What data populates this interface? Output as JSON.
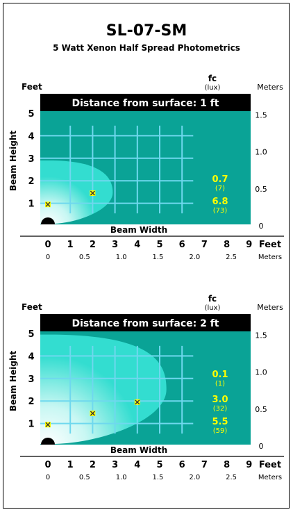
{
  "page": {
    "title": "SL-07-SM",
    "subtitle": "5 Watt Xenon Half Spread Photometrics"
  },
  "colors": {
    "panel": "#0aa396",
    "beam_outer": "#33ddd0",
    "beam_center": "#ffffff",
    "grid": "#6fd8ee",
    "labels": "#ffff00",
    "header": "#000000"
  },
  "chart_data": [
    {
      "type": "area",
      "title": "Distance from surface: 1 ft",
      "left_axis_title": "Feet",
      "right_axis_title": "Meters",
      "fc_title": "fc",
      "lux_title": "(lux)",
      "ylabel": "Beam Height",
      "xlabel": "Beam Width",
      "x_unit_feet": "Feet",
      "x_unit_meters": "Meters",
      "x_ticks_ft": [
        "0",
        "1",
        "2",
        "3",
        "4",
        "5",
        "6",
        "7",
        "8",
        "9"
      ],
      "x_ticks_m": [
        "0",
        "0.5",
        "1.0",
        "1.5",
        "2.0",
        "2.5"
      ],
      "y_ticks_ft": [
        "1",
        "2",
        "3",
        "4",
        "5"
      ],
      "y_ticks_m": [
        "0",
        "0.5",
        "1.0",
        "1.5"
      ],
      "xlim": [
        0,
        9
      ],
      "ylim": [
        0,
        5
      ],
      "beam_reach_ft": 2.9,
      "beam_top_ft": 2.9,
      "illuminance": [
        {
          "fc": "0.7",
          "lux": "(7)",
          "y_ft": 1.95
        },
        {
          "fc": "6.8",
          "lux": "(73)",
          "y_ft": 0.95
        }
      ],
      "markers": [
        {
          "x_ft": 0,
          "y_ft": 0.95
        },
        {
          "x_ft": 2,
          "y_ft": 1.45
        }
      ]
    },
    {
      "type": "area",
      "title": "Distance from surface: 2 ft",
      "left_axis_title": "Feet",
      "right_axis_title": "Meters",
      "fc_title": "fc",
      "lux_title": "(lux)",
      "ylabel": "Beam Height",
      "xlabel": "Beam Width",
      "x_unit_feet": "Feet",
      "x_unit_meters": "Meters",
      "x_ticks_ft": [
        "0",
        "1",
        "2",
        "3",
        "4",
        "5",
        "6",
        "7",
        "8",
        "9"
      ],
      "x_ticks_m": [
        "0",
        "0.5",
        "1.0",
        "1.5",
        "2.0",
        "2.5"
      ],
      "y_ticks_ft": [
        "1",
        "2",
        "3",
        "4",
        "5"
      ],
      "y_ticks_m": [
        "0",
        "0.5",
        "1.0",
        "1.5"
      ],
      "xlim": [
        0,
        9
      ],
      "ylim": [
        0,
        5
      ],
      "beam_reach_ft": 5.3,
      "beam_top_ft": 4.95,
      "illuminance": [
        {
          "fc": "0.1",
          "lux": "(1)",
          "y_ft": 3.05
        },
        {
          "fc": "3.0",
          "lux": "(32)",
          "y_ft": 1.95
        },
        {
          "fc": "5.5",
          "lux": "(59)",
          "y_ft": 0.95
        }
      ],
      "markers": [
        {
          "x_ft": 0,
          "y_ft": 0.95
        },
        {
          "x_ft": 2,
          "y_ft": 1.45
        },
        {
          "x_ft": 4,
          "y_ft": 1.95
        }
      ]
    }
  ]
}
